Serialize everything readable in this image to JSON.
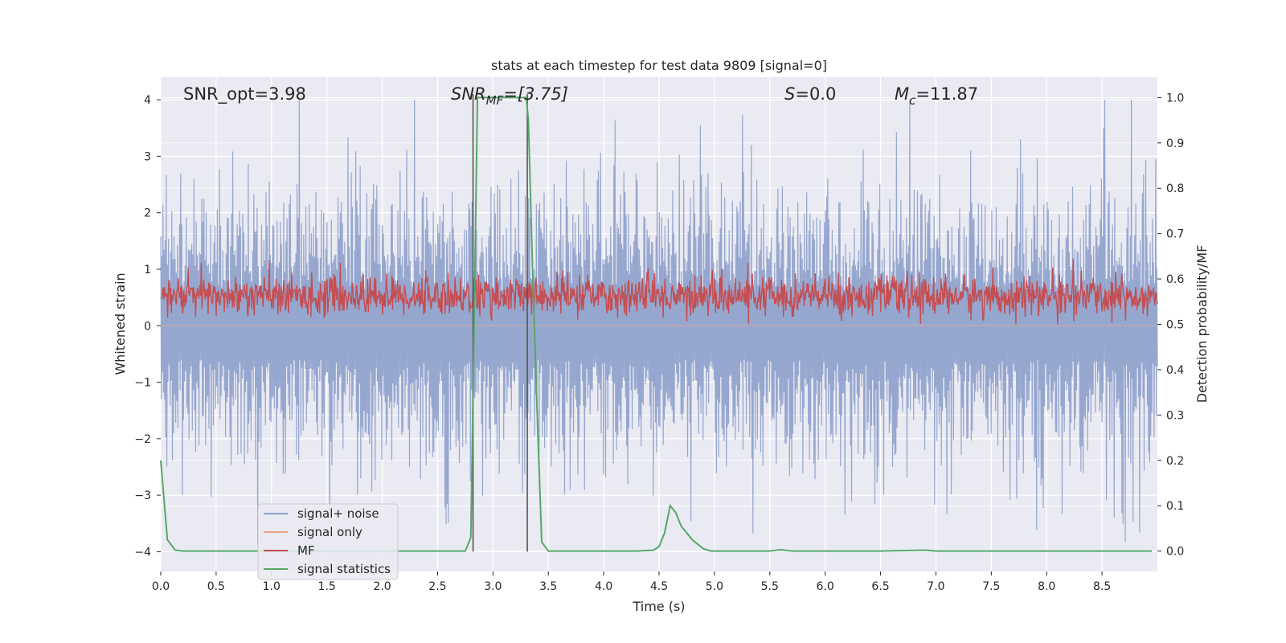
{
  "chart_data": {
    "type": "line",
    "title": "stats at each timestep for test data 9809 [signal=0]",
    "xlabel": "Time (s)",
    "ylabel_left": "Whitened strain",
    "ylabel_right": "Detection probability/MF",
    "xlim": [
      0.0,
      9.0
    ],
    "ylim_left": [
      -4.35,
      4.4
    ],
    "ylim_right": [
      -0.045,
      1.045
    ],
    "x_ticks": [
      "0.0",
      "0.5",
      "1.0",
      "1.5",
      "2.0",
      "2.5",
      "3.0",
      "3.5",
      "4.0",
      "4.5",
      "5.0",
      "5.5",
      "6.0",
      "6.5",
      "7.0",
      "7.5",
      "8.0",
      "8.5"
    ],
    "y_ticks_left": [
      "4",
      "3",
      "2",
      "1",
      "0",
      "−1",
      "−2",
      "−3",
      "−4"
    ],
    "y_ticks_left_values": [
      4,
      3,
      2,
      1,
      0,
      -1,
      -2,
      -3,
      -4
    ],
    "y_ticks_right": [
      "1.0",
      "0.9",
      "0.8",
      "0.7",
      "0.6",
      "0.5",
      "0.4",
      "0.3",
      "0.2",
      "0.1",
      "0.0"
    ],
    "y_ticks_right_values": [
      1.0,
      0.9,
      0.8,
      0.7,
      0.6,
      0.5,
      0.4,
      0.3,
      0.2,
      0.1,
      0.0
    ],
    "grid": true,
    "legend_position": "lower-left",
    "annotations": {
      "snr_opt": "SNR_opt=3.98",
      "snr_mf_main": "SNR",
      "snr_mf_sub": "MF",
      "snr_mf_rest": "=[3.75]",
      "s_main": "S",
      "s_rest": "=0.0",
      "mc_main": "M",
      "mc_sub": "c",
      "mc_rest": "=11.87"
    },
    "vertical_lines": [
      2.82,
      3.31
    ],
    "series": [
      {
        "name": "signal+ noise",
        "color": "#8da0cb",
        "axis": "left",
        "kind": "noise",
        "amplitude_range": [
          -3.9,
          4.0
        ]
      },
      {
        "name": "signal only",
        "color": "#e8a38b",
        "axis": "left",
        "kind": "flat",
        "value": 0.0
      },
      {
        "name": "MF",
        "color": "#c44e52",
        "axis": "right",
        "kind": "noise",
        "amplitude_range": [
          0.5,
          0.625
        ]
      },
      {
        "name": "signal statistics",
        "color": "#55a868",
        "axis": "right",
        "kind": "line",
        "x": [
          0.0,
          0.06,
          0.13,
          0.2,
          0.5,
          1.0,
          1.5,
          2.0,
          2.5,
          2.75,
          2.8,
          2.83,
          2.86,
          2.9,
          3.0,
          3.1,
          3.2,
          3.3,
          3.32,
          3.36,
          3.4,
          3.44,
          3.5,
          3.55,
          3.6,
          4.0,
          4.3,
          4.45,
          4.5,
          4.55,
          4.6,
          4.65,
          4.7,
          4.8,
          4.9,
          4.97,
          5.0,
          5.1,
          5.3,
          5.5,
          5.6,
          5.7,
          6.0,
          6.5,
          6.9,
          7.0,
          7.5,
          8.0,
          8.5,
          8.95
        ],
        "y": [
          0.2,
          0.025,
          0.002,
          0.0,
          0.0,
          0.0,
          0.0,
          0.0,
          0.0,
          0.0,
          0.03,
          0.5,
          1.0,
          1.0,
          1.0,
          1.0,
          1.0,
          1.0,
          0.95,
          0.6,
          0.3,
          0.02,
          0.0,
          0.0,
          0.0,
          0.0,
          0.0,
          0.002,
          0.01,
          0.04,
          0.1,
          0.085,
          0.055,
          0.025,
          0.005,
          0.0,
          0.0,
          0.0,
          0.0,
          0.0,
          0.003,
          0.0,
          0.0,
          0.0,
          0.002,
          0.0,
          0.0,
          0.0,
          0.0,
          0.0
        ]
      }
    ]
  }
}
